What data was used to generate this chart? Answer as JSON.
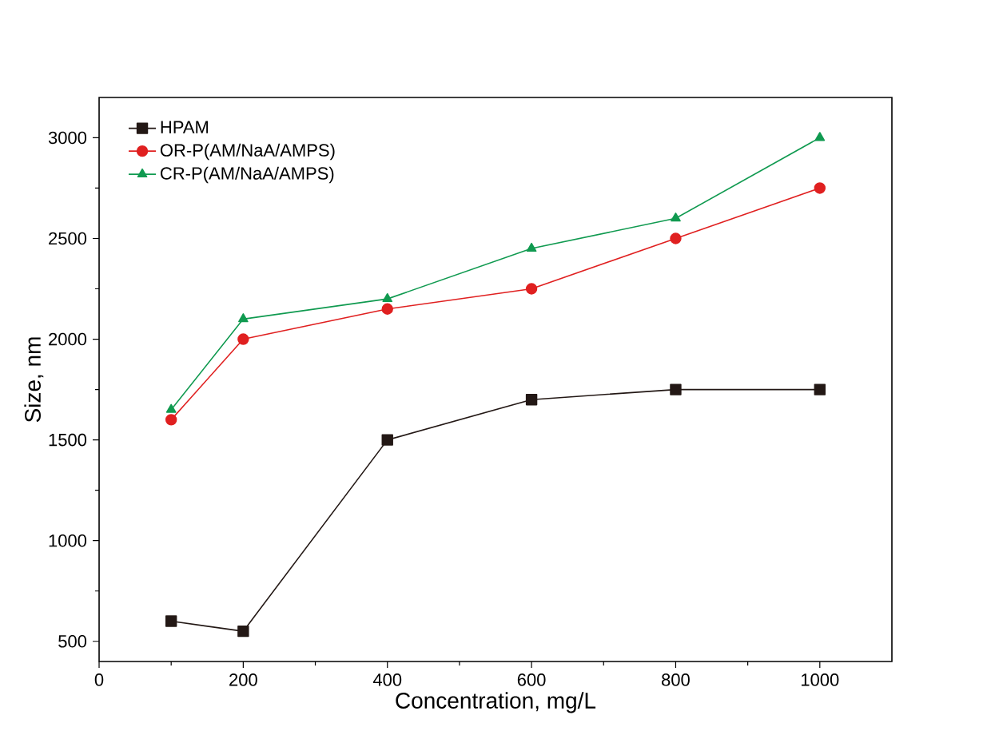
{
  "chart_data": {
    "type": "line",
    "xlabel": "Concentration, mg/L",
    "ylabel": "Size, nm",
    "x": [
      100,
      200,
      400,
      600,
      800,
      1000
    ],
    "series": [
      {
        "name": "HPAM",
        "color": "#231815",
        "marker": "square",
        "values": [
          600,
          550,
          1500,
          1700,
          1750,
          1750
        ]
      },
      {
        "name": "OR-P(AM/NaA/AMPS)",
        "color": "#e02020",
        "marker": "circle",
        "values": [
          1600,
          2000,
          2150,
          2250,
          2500,
          2750
        ]
      },
      {
        "name": "CR-P(AM/NaA/AMPS)",
        "color": "#109a50",
        "marker": "triangle",
        "values": [
          1650,
          2100,
          2200,
          2450,
          2600,
          3000
        ]
      }
    ],
    "xlim": [
      0,
      1100
    ],
    "ylim": [
      400,
      3200
    ],
    "xticks": [
      0,
      200,
      400,
      600,
      800,
      1000
    ],
    "yticks": [
      500,
      1000,
      1500,
      2000,
      2500,
      3000
    ],
    "grid": false,
    "legend": "top left",
    "line_style": "solid"
  }
}
